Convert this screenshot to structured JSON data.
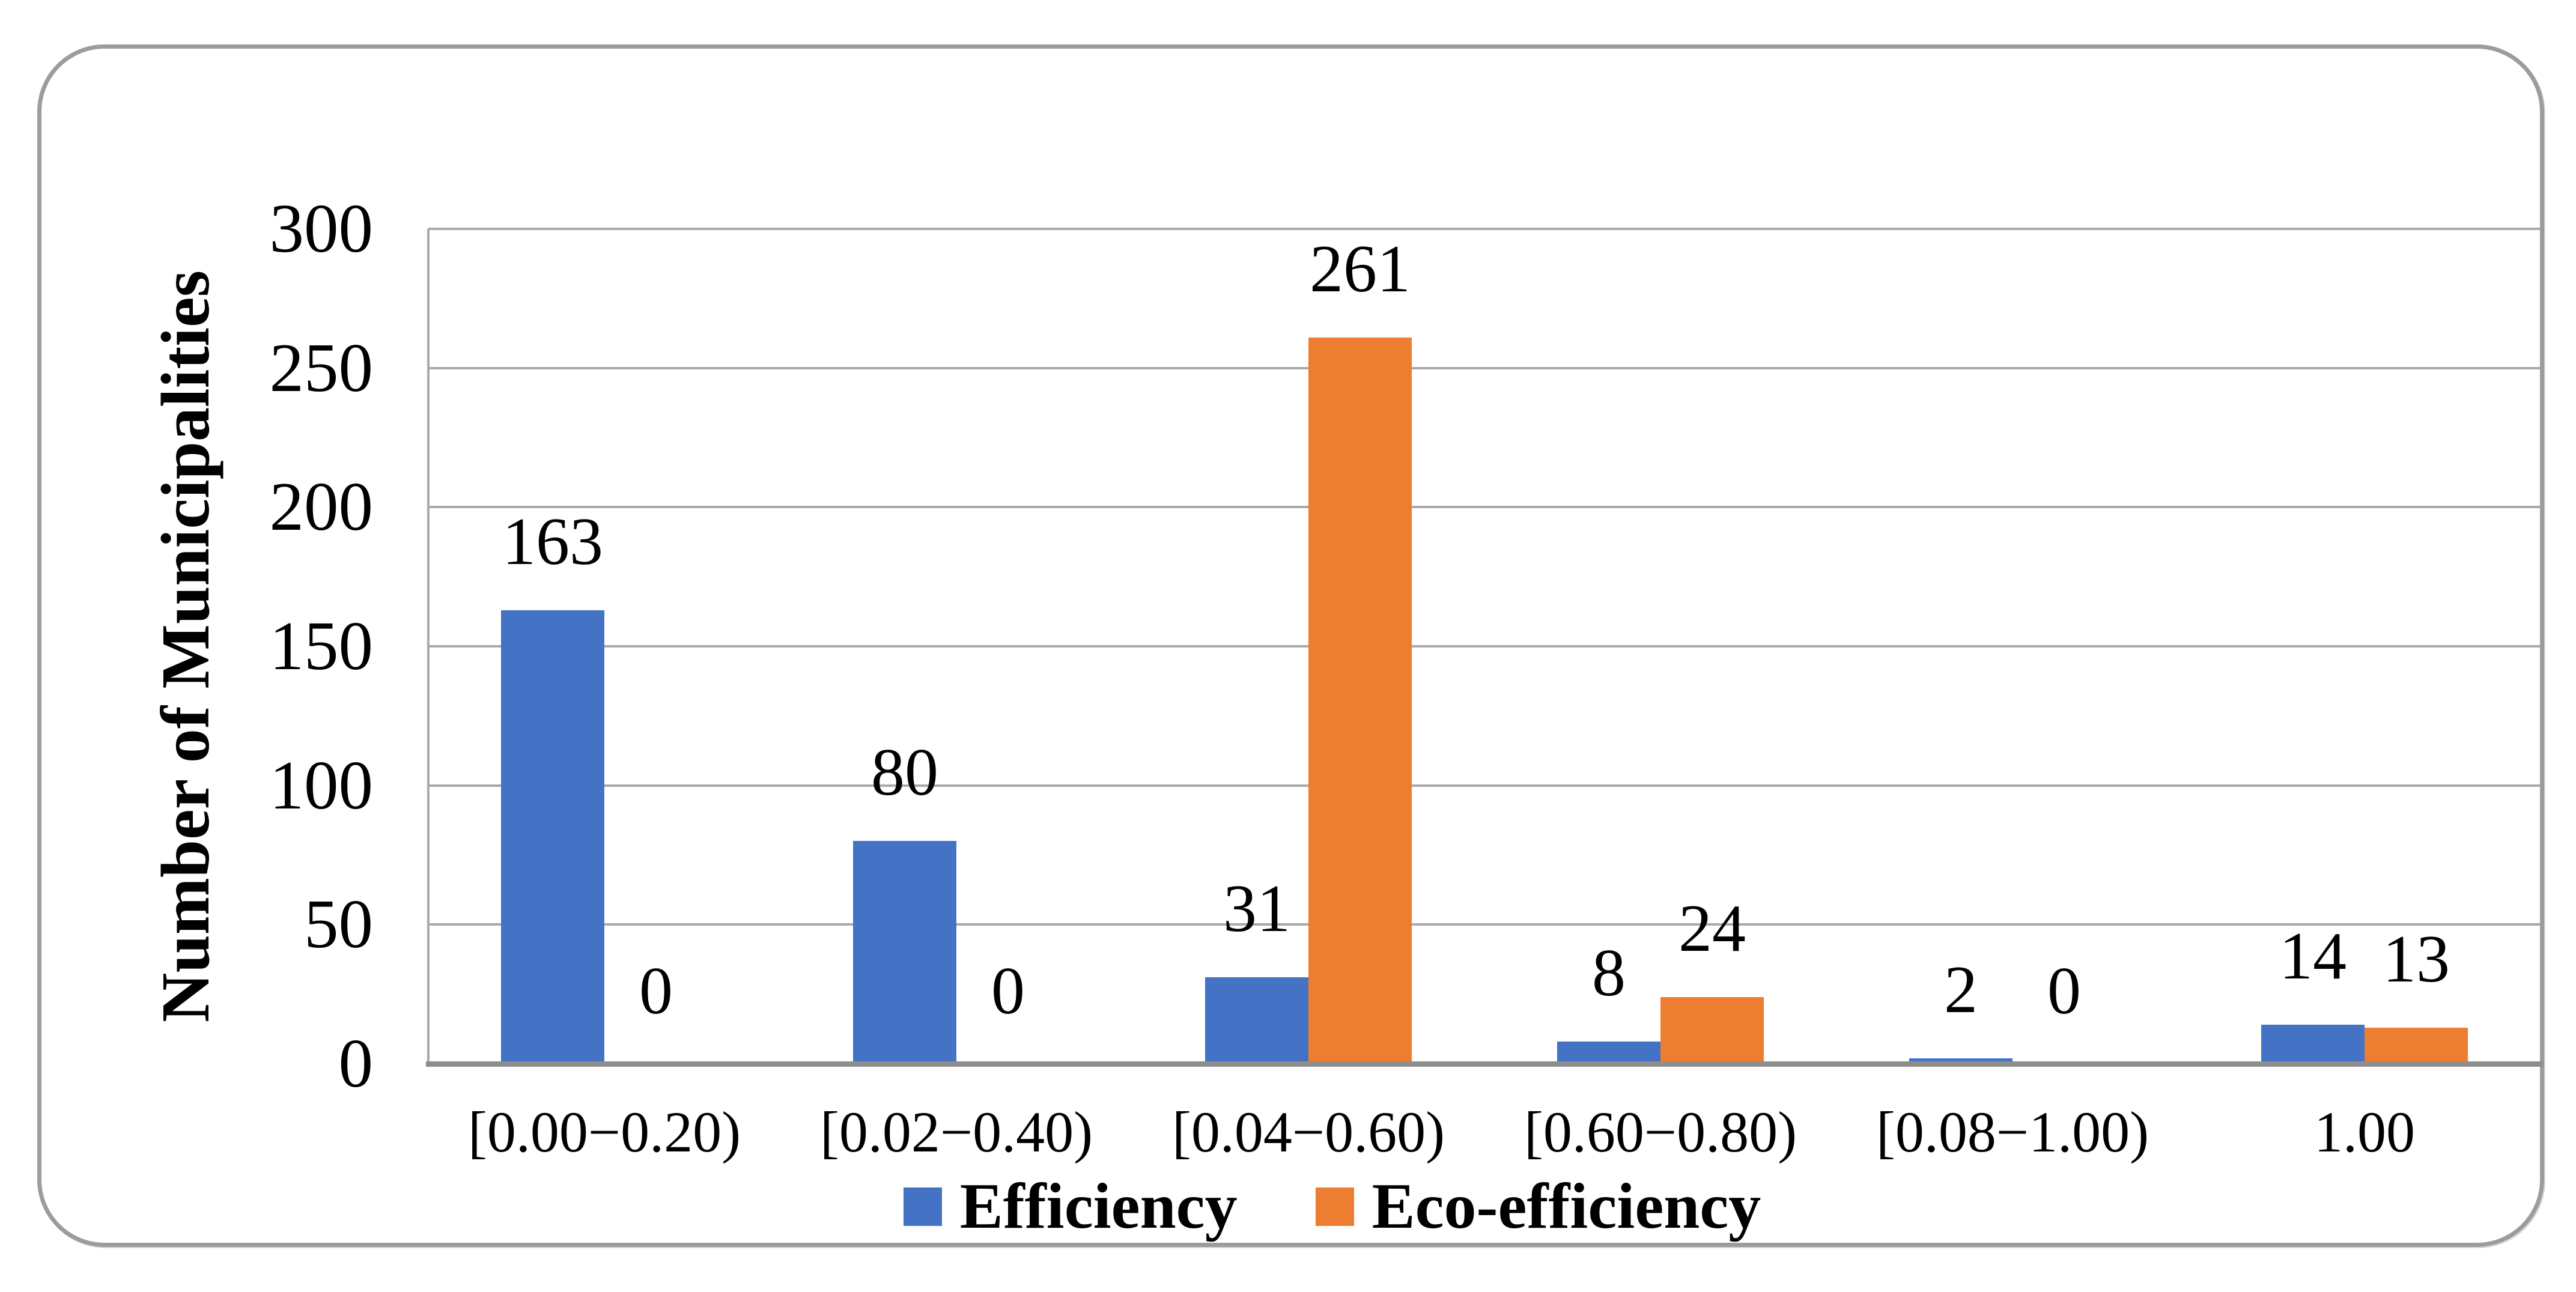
{
  "chart_data": {
    "type": "bar",
    "title": "",
    "categories": [
      "[0.00−0.20)",
      "[0.02−0.40)",
      "[0.04−0.60)",
      "[0.60−0.80)",
      "[0.08−1.00)",
      "1.00"
    ],
    "series": [
      {
        "name": "Efficiency",
        "color": "#4472C4",
        "values": [
          163,
          80,
          31,
          8,
          2,
          14
        ]
      },
      {
        "name": "Eco-efficiency",
        "color": "#ED7D31",
        "values": [
          0,
          0,
          261,
          24,
          0,
          13
        ]
      }
    ],
    "xlabel": "",
    "ylabel": "Number of Municipalities",
    "ylim": [
      0,
      300
    ],
    "yticks": [
      0,
      50,
      100,
      150,
      200,
      250,
      300
    ],
    "grid": true,
    "legend_position": "bottom",
    "data_labels": true
  },
  "styles": {
    "bar_blue": "#4472C4",
    "bar_orange": "#ED7D31",
    "gridline_color": "#A9A9A9",
    "x_axis_color": "#8E8E8E",
    "frame_border_color": "#9C9C9C",
    "text_color": "#000000"
  }
}
